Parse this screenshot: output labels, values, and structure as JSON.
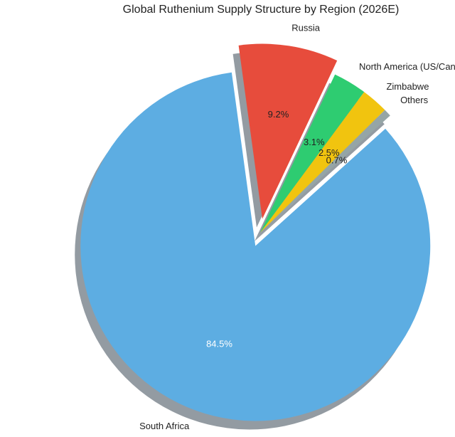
{
  "chart_data": {
    "type": "pie",
    "title": "Global Ruthenium Supply Structure by Region (2026E)",
    "shadow": true,
    "slices": [
      {
        "label": "South Africa",
        "value": 84.5,
        "pct_label": "84.5%",
        "color": "#5DADE2",
        "exploded": true,
        "pct_text_color": "#ffffff"
      },
      {
        "label": "Russia",
        "value": 9.2,
        "pct_label": "9.2%",
        "color": "#E74C3C",
        "exploded": true,
        "pct_text_color": "#222222"
      },
      {
        "label": "North America (US/Canada)",
        "value": 3.1,
        "pct_label": "3.1%",
        "color": "#2ECC71",
        "exploded": false,
        "pct_text_color": "#222222"
      },
      {
        "label": "Zimbabwe",
        "value": 2.5,
        "pct_label": "2.5%",
        "color": "#F1C40F",
        "exploded": false,
        "pct_text_color": "#222222"
      },
      {
        "label": "Others",
        "value": 0.7,
        "pct_label": "0.7%",
        "color": "#95A5A6",
        "exploded": false,
        "pct_text_color": "#222222"
      }
    ]
  }
}
